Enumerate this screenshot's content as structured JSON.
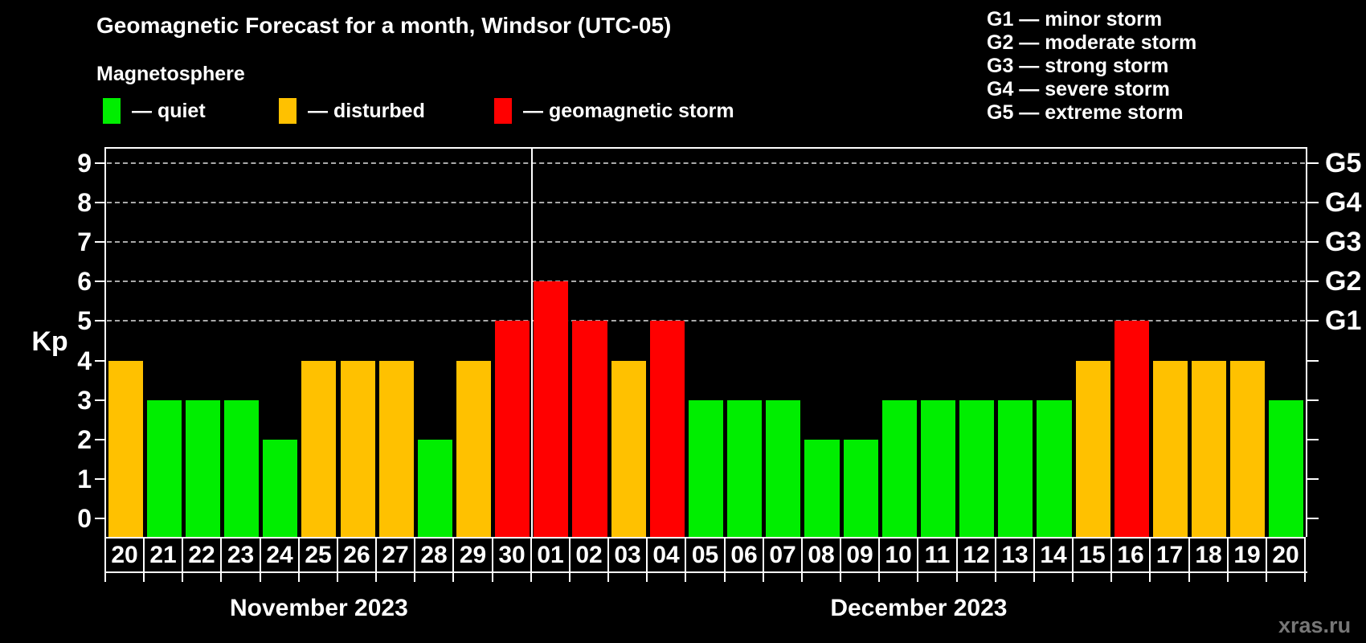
{
  "title": "Geomagnetic Forecast for a month, Windsor (UTC-05)",
  "subtitle": "Magnetosphere",
  "status_legend": [
    {
      "id": "quiet",
      "label": "— quiet",
      "color": "#00EE00"
    },
    {
      "id": "disturbed",
      "label": "— disturbed",
      "color": "#FFC100"
    },
    {
      "id": "storm",
      "label": "— geomagnetic storm",
      "color": "#FF0000"
    }
  ],
  "g_scale_legend": [
    "G1 — minor storm",
    "G2 — moderate storm",
    "G3 — strong storm",
    "G4 — severe storm",
    "G5 — extreme storm"
  ],
  "watermark": "xras.ru",
  "chart_data": {
    "type": "bar",
    "title": "Geomagnetic Forecast for a month, Windsor (UTC-05)",
    "subtitle": "Magnetosphere",
    "ylabel": "Kp",
    "ylim": [
      0,
      9
    ],
    "grid": "dashed horizontal lines at Kp 5-9 only",
    "legend_position": "top-left",
    "left_axis_ticks": [
      "0",
      "1",
      "2",
      "3",
      "4",
      "5",
      "6",
      "7",
      "8",
      "9"
    ],
    "right_axis_labels": [
      {
        "label": "G1",
        "kp": 5
      },
      {
        "label": "G2",
        "kp": 6
      },
      {
        "label": "G3",
        "kp": 7
      },
      {
        "label": "G4",
        "kp": 8
      },
      {
        "label": "G5",
        "kp": 9
      }
    ],
    "grid_levels": [
      5,
      6,
      7,
      8,
      9
    ],
    "months": [
      {
        "label": "November 2023",
        "days": 11
      },
      {
        "label": "December 2023",
        "days": 20
      }
    ],
    "categories": [
      "20",
      "21",
      "22",
      "23",
      "24",
      "25",
      "26",
      "27",
      "28",
      "29",
      "30",
      "01",
      "02",
      "03",
      "04",
      "05",
      "06",
      "07",
      "08",
      "09",
      "10",
      "11",
      "12",
      "13",
      "14",
      "15",
      "16",
      "17",
      "18",
      "19",
      "20"
    ],
    "values": [
      4,
      3,
      3,
      3,
      2,
      4,
      4,
      4,
      2,
      4,
      5,
      6,
      5,
      4,
      5,
      3,
      3,
      3,
      2,
      2,
      3,
      3,
      3,
      3,
      3,
      4,
      5,
      4,
      4,
      4,
      3
    ],
    "status": [
      "disturbed",
      "quiet",
      "quiet",
      "quiet",
      "quiet",
      "disturbed",
      "disturbed",
      "disturbed",
      "quiet",
      "disturbed",
      "storm",
      "storm",
      "storm",
      "disturbed",
      "storm",
      "quiet",
      "quiet",
      "quiet",
      "quiet",
      "quiet",
      "quiet",
      "quiet",
      "quiet",
      "quiet",
      "quiet",
      "disturbed",
      "storm",
      "disturbed",
      "disturbed",
      "disturbed",
      "quiet"
    ],
    "colors": {
      "quiet": "#00EE00",
      "disturbed": "#FFC100",
      "storm": "#FF0000"
    }
  }
}
